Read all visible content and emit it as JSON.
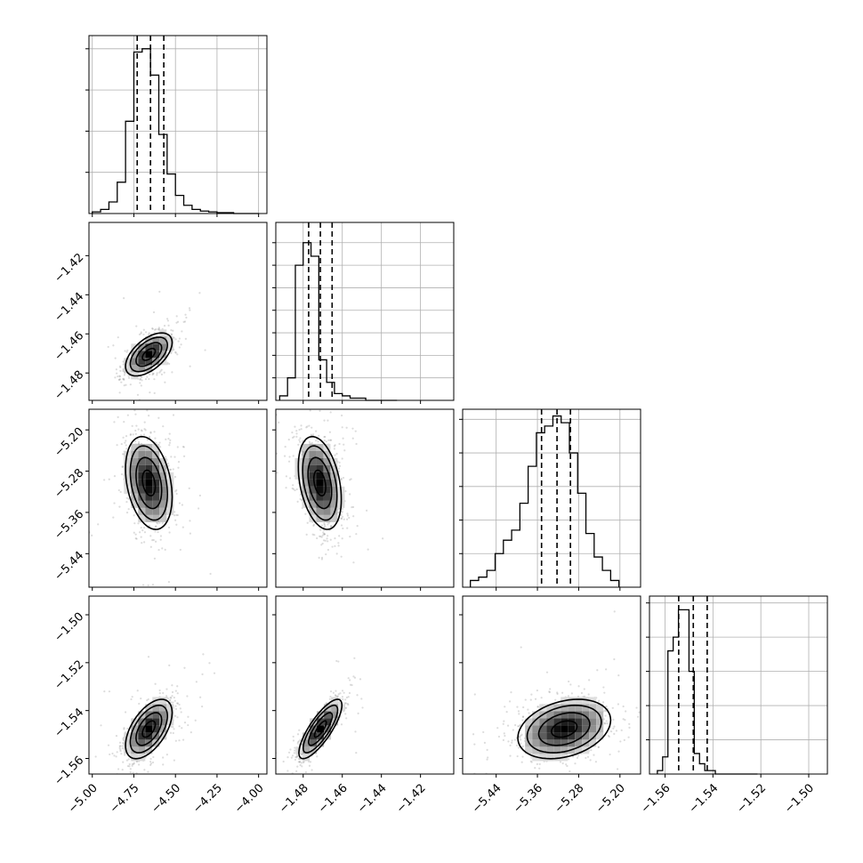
{
  "chart_data": {
    "type": "corner",
    "parameters": [
      {
        "range": [
          -5.02,
          -3.95
        ],
        "ticks": [
          -5.0,
          -4.75,
          -4.5,
          -4.25,
          -4.0
        ],
        "tick_labels": [
          "−5.00",
          "−4.75",
          "−4.50",
          "−4.25",
          "−4.00"
        ],
        "histogram": {
          "bin_start": -5.0,
          "bin_width": 0.05,
          "counts": [
            2,
            5,
            14,
            38,
            112,
            196,
            200,
            168,
            96,
            48,
            22,
            10,
            5,
            3,
            2,
            1,
            1,
            0,
            0,
            0
          ],
          "ymax": 216,
          "y_ticks": [
            50,
            100,
            150,
            200
          ]
        },
        "quantiles": [
          -4.73,
          -4.65,
          -4.57
        ]
      },
      {
        "range": [
          -1.494,
          -1.403
        ],
        "ticks": [
          -1.48,
          -1.46,
          -1.44,
          -1.42
        ],
        "tick_labels": [
          "−1.48",
          "−1.46",
          "−1.44",
          "−1.42"
        ],
        "histogram": {
          "bin_start": -1.492,
          "bin_width": 0.004,
          "counts": [
            2,
            10,
            60,
            70,
            64,
            18,
            8,
            3,
            2,
            1,
            1,
            0,
            0,
            0,
            0
          ],
          "ymax": 79,
          "y_ticks": [
            10,
            20,
            30,
            40,
            50,
            60,
            70
          ]
        },
        "quantiles": [
          -1.4772,
          -1.4712,
          -1.4652
        ]
      },
      {
        "range": [
          -5.505,
          -5.16
        ],
        "ticks": [
          -5.44,
          -5.36,
          -5.28,
          -5.2
        ],
        "tick_labels": [
          "−5.44",
          "−5.36",
          "−5.28",
          "−5.20"
        ],
        "histogram": {
          "bin_start": -5.49,
          "bin_width": 0.016,
          "counts": [
            2,
            3,
            5,
            10,
            14,
            17,
            25,
            36,
            46,
            48,
            51,
            49,
            40,
            28,
            16,
            9,
            5,
            2
          ],
          "ymax": 53,
          "y_ticks": [
            10,
            20,
            30,
            40,
            50
          ]
        },
        "quantiles": [
          -5.352,
          -5.322,
          -5.296
        ]
      },
      {
        "range": [
          -1.5665,
          -1.4922
        ],
        "ticks": [
          -1.56,
          -1.54,
          -1.52,
          -1.5
        ],
        "tick_labels": [
          "−1.56",
          "−1.54",
          "−1.52",
          "−1.50"
        ],
        "histogram": {
          "bin_start": -1.5632,
          "bin_width": 0.0022,
          "counts": [
            1,
            5,
            36,
            40,
            48,
            48,
            30,
            6,
            3,
            1,
            1,
            0,
            0,
            0,
            0,
            0,
            0,
            0,
            0
          ],
          "ymax": 52,
          "y_ticks": [
            10,
            20,
            30,
            40,
            50
          ]
        },
        "quantiles": [
          -1.5543,
          -1.5482,
          -1.5424
        ]
      }
    ],
    "pairs": [
      {
        "row": 1,
        "col": 0,
        "center": [
          -4.66,
          -1.4705
        ],
        "spread": [
          0.07,
          0.0055
        ],
        "corr": 0.55,
        "levels": [
          0.55,
          1.1,
          1.6,
          2.0
        ]
      },
      {
        "row": 2,
        "col": 0,
        "center": [
          -4.66,
          -5.303
        ],
        "spread": [
          0.07,
          0.045
        ],
        "corr": -0.3,
        "levels": [
          0.55,
          1.1,
          1.6,
          2.0
        ]
      },
      {
        "row": 2,
        "col": 1,
        "center": [
          -1.4715,
          -5.303
        ],
        "spread": [
          0.0055,
          0.045
        ],
        "corr": -0.35,
        "levels": [
          0.55,
          1.1,
          1.6,
          2.0
        ]
      },
      {
        "row": 3,
        "col": 0,
        "center": [
          -4.66,
          -1.5477
        ],
        "spread": [
          0.07,
          0.0062
        ],
        "corr": 0.55,
        "levels": [
          0.55,
          1.1,
          1.6,
          2.0
        ]
      },
      {
        "row": 3,
        "col": 1,
        "center": [
          -1.4712,
          -1.5477
        ],
        "spread": [
          0.0055,
          0.0062
        ],
        "corr": 0.8,
        "levels": [
          0.55,
          1.1,
          1.6,
          2.0
        ]
      },
      {
        "row": 3,
        "col": 2,
        "center": [
          -5.308,
          -1.5477
        ],
        "spread": [
          0.045,
          0.0062
        ],
        "corr": 0.3,
        "levels": [
          0.55,
          1.1,
          1.6,
          2.0
        ]
      }
    ],
    "grid": true,
    "legend": "none",
    "colors": {
      "hist": "#000000",
      "points": "#808080",
      "density_max": "#000000"
    }
  }
}
